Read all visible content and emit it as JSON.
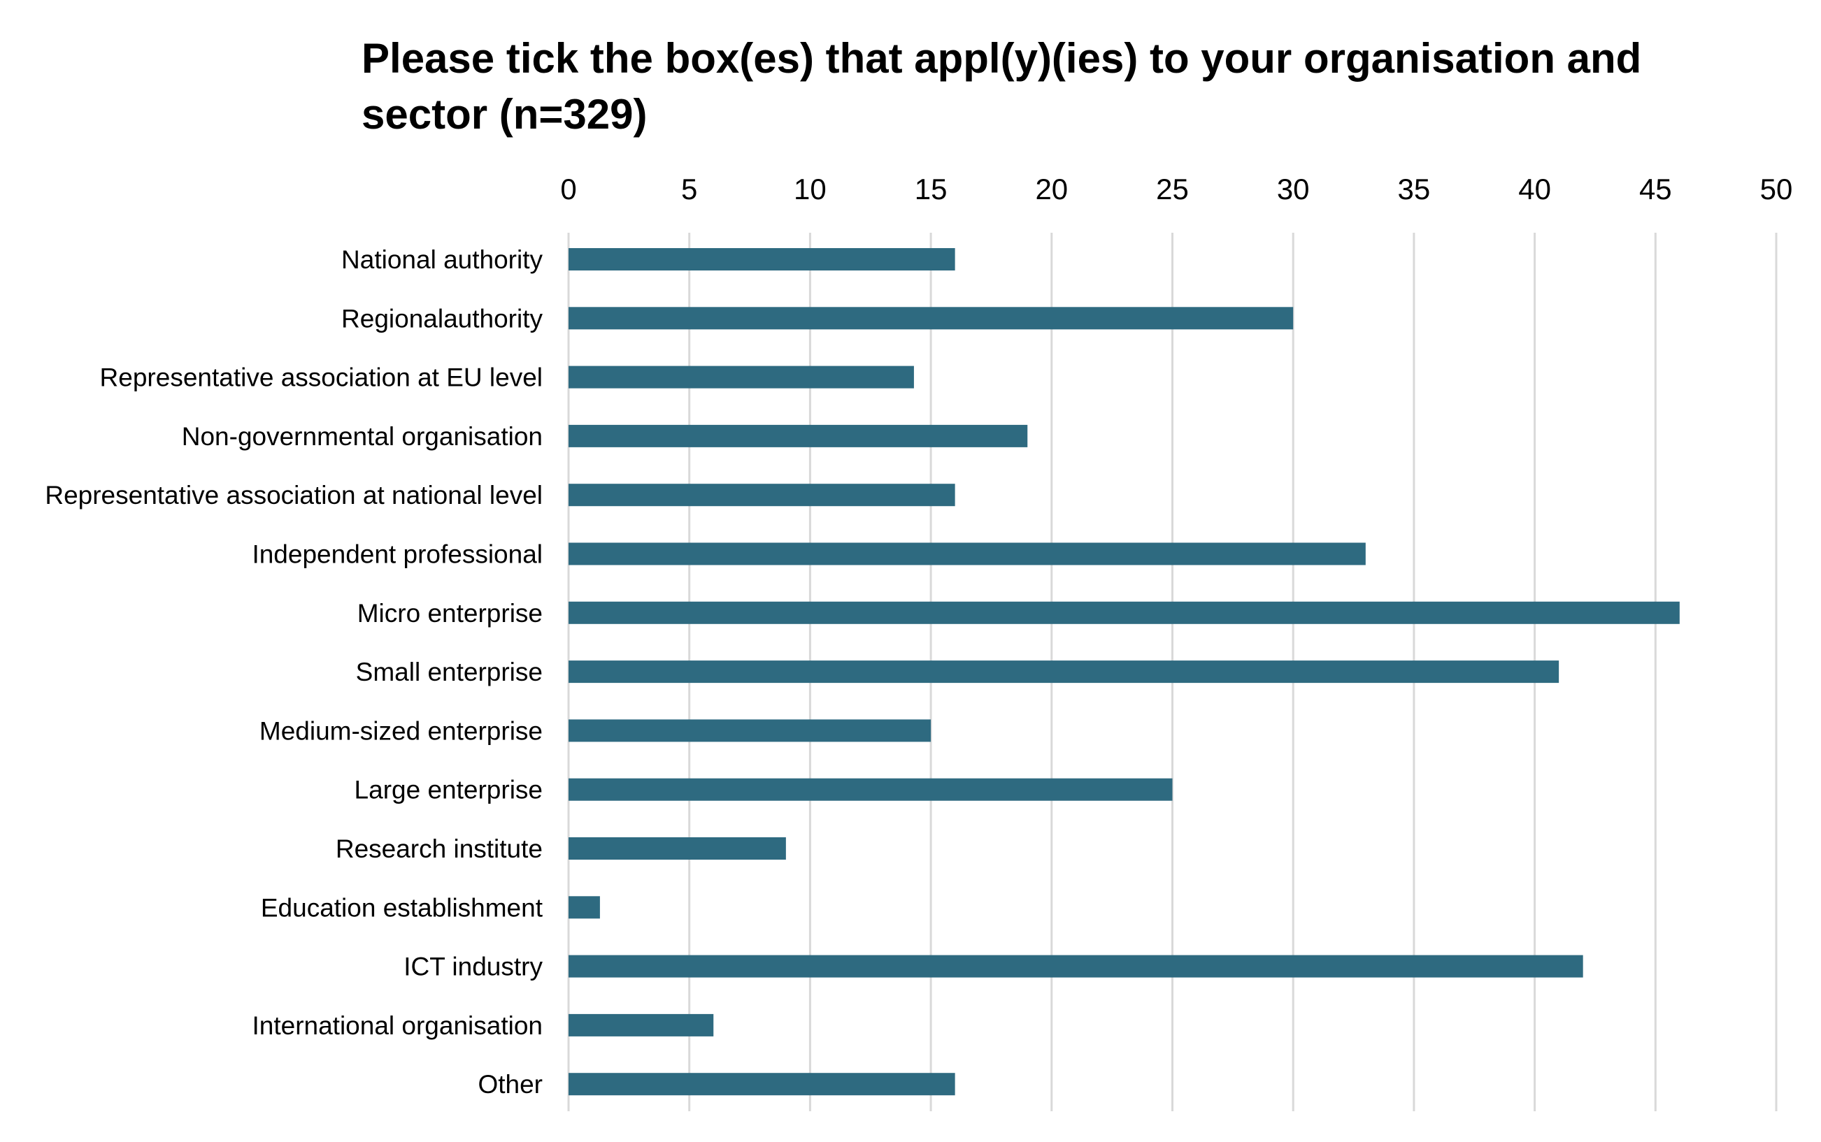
{
  "chart_data": {
    "type": "bar",
    "orientation": "horizontal",
    "title": "Please tick the box(es) that appl(y)(ies) to your organisation and sector (n=329)",
    "xlabel": "",
    "ylabel": "",
    "xlim": [
      0,
      50
    ],
    "x_ticks": [
      "0",
      "5",
      "10",
      "15",
      "20",
      "25",
      "30",
      "35",
      "40",
      "45",
      "50"
    ],
    "x_axis_position": "top",
    "grid": "vertical",
    "categories": [
      "National authority",
      "Regionalauthority",
      "Representative association at EU level",
      "Non-governmental organisation",
      "Representative association at national level",
      "Independent professional",
      "Micro enterprise",
      "Small enterprise",
      "Medium-sized enterprise",
      "Large enterprise",
      "Research institute",
      "Education establishment",
      "ICT industry",
      "International organisation",
      "Other"
    ],
    "values": [
      16,
      30,
      14.3,
      19,
      16,
      33,
      46,
      41,
      15,
      25,
      9,
      1.3,
      42,
      6,
      16
    ],
    "bar_color": "#2e6a80",
    "grid_color": "#d9d9d9"
  }
}
